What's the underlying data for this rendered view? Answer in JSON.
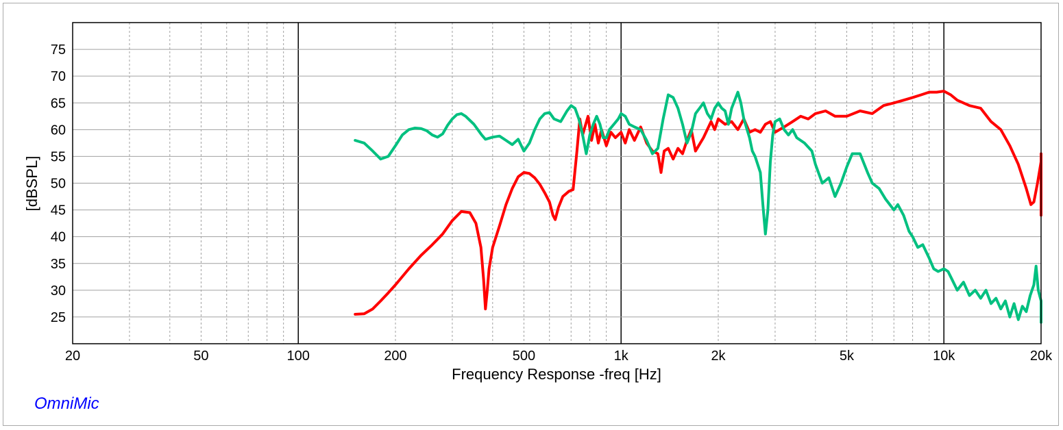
{
  "brand_label": "OmniMic",
  "chart_data": {
    "type": "line",
    "xlabel": "Frequency Response -freq [Hz]",
    "ylabel": "[dBSPL]",
    "x_scale": "log",
    "xlim": [
      20,
      20000
    ],
    "ylim": [
      20,
      80
    ],
    "x_ticks": [
      {
        "value": 20,
        "label": "20"
      },
      {
        "value": 50,
        "label": "50"
      },
      {
        "value": 100,
        "label": "100"
      },
      {
        "value": 200,
        "label": "200"
      },
      {
        "value": 500,
        "label": "500"
      },
      {
        "value": 1000,
        "label": "1k"
      },
      {
        "value": 2000,
        "label": "2k"
      },
      {
        "value": 5000,
        "label": "5k"
      },
      {
        "value": 10000,
        "label": "10k"
      },
      {
        "value": 20000,
        "label": "20k"
      }
    ],
    "y_ticks": [
      25,
      30,
      35,
      40,
      45,
      50,
      55,
      60,
      65,
      70,
      75
    ],
    "grid": true,
    "series": [
      {
        "color": "#ff0000",
        "points": [
          [
            150,
            25.5
          ],
          [
            160,
            25.6
          ],
          [
            170,
            26.5
          ],
          [
            180,
            28
          ],
          [
            190,
            29.5
          ],
          [
            200,
            31
          ],
          [
            220,
            34
          ],
          [
            240,
            36.5
          ],
          [
            260,
            38.5
          ],
          [
            280,
            40.5
          ],
          [
            300,
            43
          ],
          [
            320,
            44.7
          ],
          [
            340,
            44.5
          ],
          [
            355,
            42.5
          ],
          [
            368,
            38
          ],
          [
            375,
            32
          ],
          [
            380,
            26.5
          ],
          [
            385,
            30
          ],
          [
            390,
            34
          ],
          [
            400,
            38
          ],
          [
            420,
            42
          ],
          [
            440,
            46
          ],
          [
            460,
            49
          ],
          [
            480,
            51.2
          ],
          [
            500,
            52
          ],
          [
            520,
            51.8
          ],
          [
            540,
            51
          ],
          [
            560,
            49.8
          ],
          [
            580,
            48.2
          ],
          [
            600,
            46.5
          ],
          [
            615,
            44
          ],
          [
            625,
            43.2
          ],
          [
            640,
            45.5
          ],
          [
            660,
            47.5
          ],
          [
            690,
            48.5
          ],
          [
            710,
            48.8
          ],
          [
            730,
            56
          ],
          [
            745,
            62
          ],
          [
            760,
            59
          ],
          [
            790,
            62.5
          ],
          [
            810,
            58
          ],
          [
            830,
            61
          ],
          [
            850,
            57.5
          ],
          [
            870,
            60
          ],
          [
            900,
            57
          ],
          [
            930,
            59.5
          ],
          [
            960,
            58.5
          ],
          [
            1000,
            59.5
          ],
          [
            1030,
            57.5
          ],
          [
            1060,
            60
          ],
          [
            1100,
            58
          ],
          [
            1150,
            60.5
          ],
          [
            1200,
            57.5
          ],
          [
            1250,
            56
          ],
          [
            1300,
            55.5
          ],
          [
            1330,
            52
          ],
          [
            1360,
            56
          ],
          [
            1400,
            56.5
          ],
          [
            1450,
            54.5
          ],
          [
            1500,
            56.5
          ],
          [
            1550,
            55.5
          ],
          [
            1600,
            58
          ],
          [
            1650,
            60
          ],
          [
            1700,
            56
          ],
          [
            1800,
            58.5
          ],
          [
            1900,
            61.5
          ],
          [
            1950,
            60
          ],
          [
            2000,
            62
          ],
          [
            2100,
            61
          ],
          [
            2200,
            61.5
          ],
          [
            2300,
            60
          ],
          [
            2400,
            62
          ],
          [
            2500,
            59.5
          ],
          [
            2600,
            60
          ],
          [
            2700,
            59.5
          ],
          [
            2800,
            61
          ],
          [
            2900,
            61.5
          ],
          [
            3000,
            59.5
          ],
          [
            3200,
            60.5
          ],
          [
            3400,
            61.5
          ],
          [
            3600,
            62.5
          ],
          [
            3800,
            62
          ],
          [
            4000,
            63
          ],
          [
            4300,
            63.5
          ],
          [
            4600,
            62.5
          ],
          [
            5000,
            62.5
          ],
          [
            5500,
            63.5
          ],
          [
            6000,
            63
          ],
          [
            6500,
            64.5
          ],
          [
            7000,
            65
          ],
          [
            7500,
            65.5
          ],
          [
            8000,
            66
          ],
          [
            8500,
            66.5
          ],
          [
            9000,
            67
          ],
          [
            9500,
            67
          ],
          [
            10000,
            67.2
          ],
          [
            10500,
            66.5
          ],
          [
            11000,
            65.5
          ],
          [
            12000,
            64.5
          ],
          [
            13000,
            64
          ],
          [
            14000,
            61.5
          ],
          [
            15000,
            60
          ],
          [
            16000,
            57
          ],
          [
            17000,
            53.5
          ],
          [
            18000,
            49
          ],
          [
            18600,
            46
          ],
          [
            19000,
            46.5
          ],
          [
            19500,
            50
          ],
          [
            20000,
            54
          ],
          [
            20500,
            55.5
          ],
          [
            21000,
            54
          ],
          [
            21500,
            50
          ],
          [
            22000,
            44
          ]
        ]
      },
      {
        "color": "#00c080",
        "points": [
          [
            150,
            58
          ],
          [
            160,
            57.5
          ],
          [
            170,
            56
          ],
          [
            180,
            54.5
          ],
          [
            190,
            55
          ],
          [
            200,
            57
          ],
          [
            210,
            59
          ],
          [
            220,
            60
          ],
          [
            230,
            60.3
          ],
          [
            240,
            60.2
          ],
          [
            250,
            59.8
          ],
          [
            260,
            59
          ],
          [
            270,
            58.6
          ],
          [
            280,
            59.2
          ],
          [
            290,
            60.8
          ],
          [
            300,
            62
          ],
          [
            310,
            62.8
          ],
          [
            320,
            63
          ],
          [
            330,
            62.5
          ],
          [
            350,
            61
          ],
          [
            370,
            59
          ],
          [
            380,
            58.2
          ],
          [
            400,
            58.6
          ],
          [
            420,
            58.8
          ],
          [
            440,
            58
          ],
          [
            460,
            57.2
          ],
          [
            480,
            58.2
          ],
          [
            500,
            56
          ],
          [
            520,
            57.5
          ],
          [
            540,
            60
          ],
          [
            560,
            62
          ],
          [
            580,
            63
          ],
          [
            600,
            63.2
          ],
          [
            620,
            62
          ],
          [
            650,
            61.5
          ],
          [
            680,
            63.5
          ],
          [
            700,
            64.5
          ],
          [
            720,
            64
          ],
          [
            740,
            62
          ],
          [
            760,
            59
          ],
          [
            780,
            55.5
          ],
          [
            800,
            59
          ],
          [
            820,
            61
          ],
          [
            840,
            62.5
          ],
          [
            860,
            61
          ],
          [
            880,
            58.5
          ],
          [
            900,
            58.5
          ],
          [
            920,
            60
          ],
          [
            950,
            61
          ],
          [
            980,
            62
          ],
          [
            1000,
            63
          ],
          [
            1030,
            62.5
          ],
          [
            1060,
            61
          ],
          [
            1100,
            60.5
          ],
          [
            1150,
            60
          ],
          [
            1200,
            58
          ],
          [
            1250,
            55.5
          ],
          [
            1300,
            56.5
          ],
          [
            1350,
            62
          ],
          [
            1400,
            66.5
          ],
          [
            1450,
            66
          ],
          [
            1500,
            64
          ],
          [
            1550,
            61
          ],
          [
            1600,
            57.5
          ],
          [
            1650,
            59.5
          ],
          [
            1700,
            63
          ],
          [
            1750,
            64
          ],
          [
            1800,
            65
          ],
          [
            1850,
            63
          ],
          [
            1900,
            62
          ],
          [
            1950,
            64
          ],
          [
            2000,
            65
          ],
          [
            2050,
            64
          ],
          [
            2100,
            63.5
          ],
          [
            2150,
            61
          ],
          [
            2200,
            64
          ],
          [
            2250,
            65.5
          ],
          [
            2300,
            67
          ],
          [
            2350,
            65
          ],
          [
            2400,
            62
          ],
          [
            2500,
            58.5
          ],
          [
            2550,
            56
          ],
          [
            2600,
            55
          ],
          [
            2700,
            52
          ],
          [
            2750,
            46
          ],
          [
            2800,
            40.5
          ],
          [
            2850,
            45
          ],
          [
            2900,
            54
          ],
          [
            2950,
            59
          ],
          [
            3000,
            61.5
          ],
          [
            3100,
            62
          ],
          [
            3200,
            60
          ],
          [
            3300,
            59
          ],
          [
            3400,
            60
          ],
          [
            3500,
            58.5
          ],
          [
            3700,
            57.5
          ],
          [
            3900,
            56
          ],
          [
            4000,
            53.5
          ],
          [
            4200,
            50
          ],
          [
            4400,
            51
          ],
          [
            4600,
            47.5
          ],
          [
            4800,
            50
          ],
          [
            5000,
            53
          ],
          [
            5200,
            55.5
          ],
          [
            5500,
            55.5
          ],
          [
            5800,
            52
          ],
          [
            6000,
            50
          ],
          [
            6300,
            49
          ],
          [
            6600,
            47
          ],
          [
            7000,
            45
          ],
          [
            7200,
            46
          ],
          [
            7500,
            44
          ],
          [
            7800,
            41
          ],
          [
            8000,
            40
          ],
          [
            8300,
            38
          ],
          [
            8600,
            38.5
          ],
          [
            9000,
            36
          ],
          [
            9300,
            34
          ],
          [
            9600,
            33.5
          ],
          [
            10000,
            34
          ],
          [
            10300,
            33.5
          ],
          [
            10600,
            32
          ],
          [
            11000,
            30
          ],
          [
            11500,
            31.5
          ],
          [
            12000,
            29
          ],
          [
            12500,
            30
          ],
          [
            13000,
            28.5
          ],
          [
            13500,
            30
          ],
          [
            14000,
            27.5
          ],
          [
            14500,
            28.5
          ],
          [
            15000,
            26.5
          ],
          [
            15500,
            28
          ],
          [
            16000,
            25
          ],
          [
            16500,
            27.5
          ],
          [
            17000,
            24.5
          ],
          [
            17500,
            27
          ],
          [
            18000,
            26
          ],
          [
            18500,
            29
          ],
          [
            19000,
            31
          ],
          [
            19300,
            34.5
          ],
          [
            19600,
            30
          ],
          [
            20000,
            28
          ],
          [
            20300,
            24
          ],
          [
            20600,
            28
          ],
          [
            21000,
            26
          ],
          [
            21500,
            27
          ],
          [
            22000,
            26
          ]
        ]
      }
    ]
  }
}
